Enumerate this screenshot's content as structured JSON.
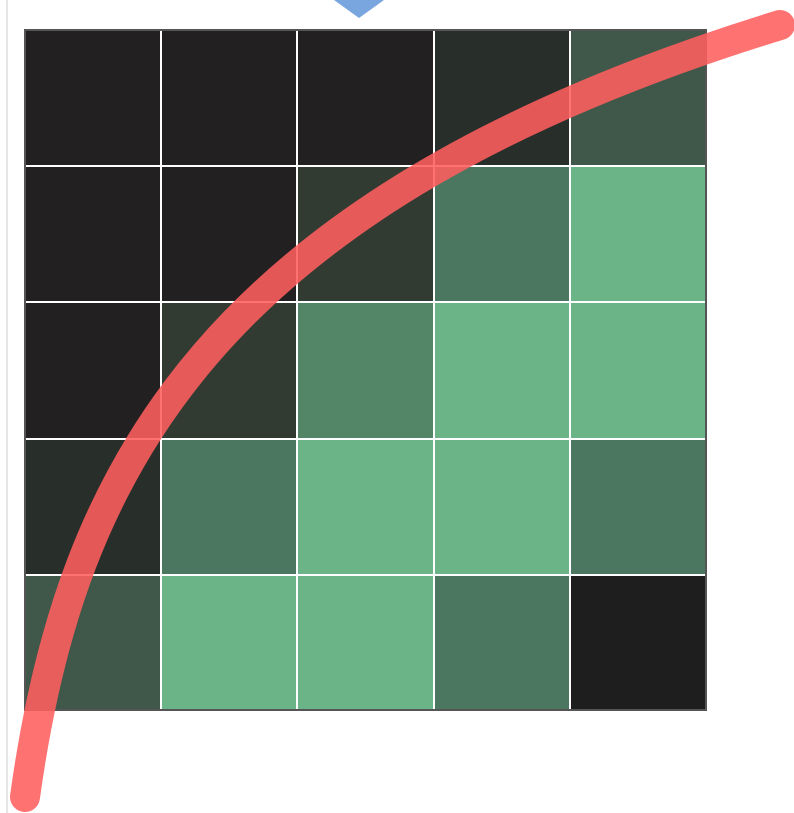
{
  "diagram": {
    "grid": {
      "rows": 5,
      "cols": 5,
      "cells": [
        [
          "#232021",
          "#232021",
          "#232021",
          "#282e29",
          "#405849"
        ],
        [
          "#232021",
          "#232021",
          "#313b32",
          "#4b7760",
          "#6ab487"
        ],
        [
          "#232021",
          "#313b32",
          "#538667",
          "#6ab487",
          "#6ab487"
        ],
        [
          "#282e29",
          "#4b7760",
          "#6ab487",
          "#6ab487",
          "#4b7760"
        ],
        [
          "#405849",
          "#6ab487",
          "#6ab487",
          "#4b7760",
          "#1e1e1e"
        ]
      ],
      "line_color": "#ffffff",
      "border_color": "#555555"
    },
    "curve": {
      "color": "#ff5e5e",
      "opacity": 0.88
    },
    "marker": {
      "color": "#7aa6e0",
      "icon": "blue-triangle-marker"
    }
  }
}
